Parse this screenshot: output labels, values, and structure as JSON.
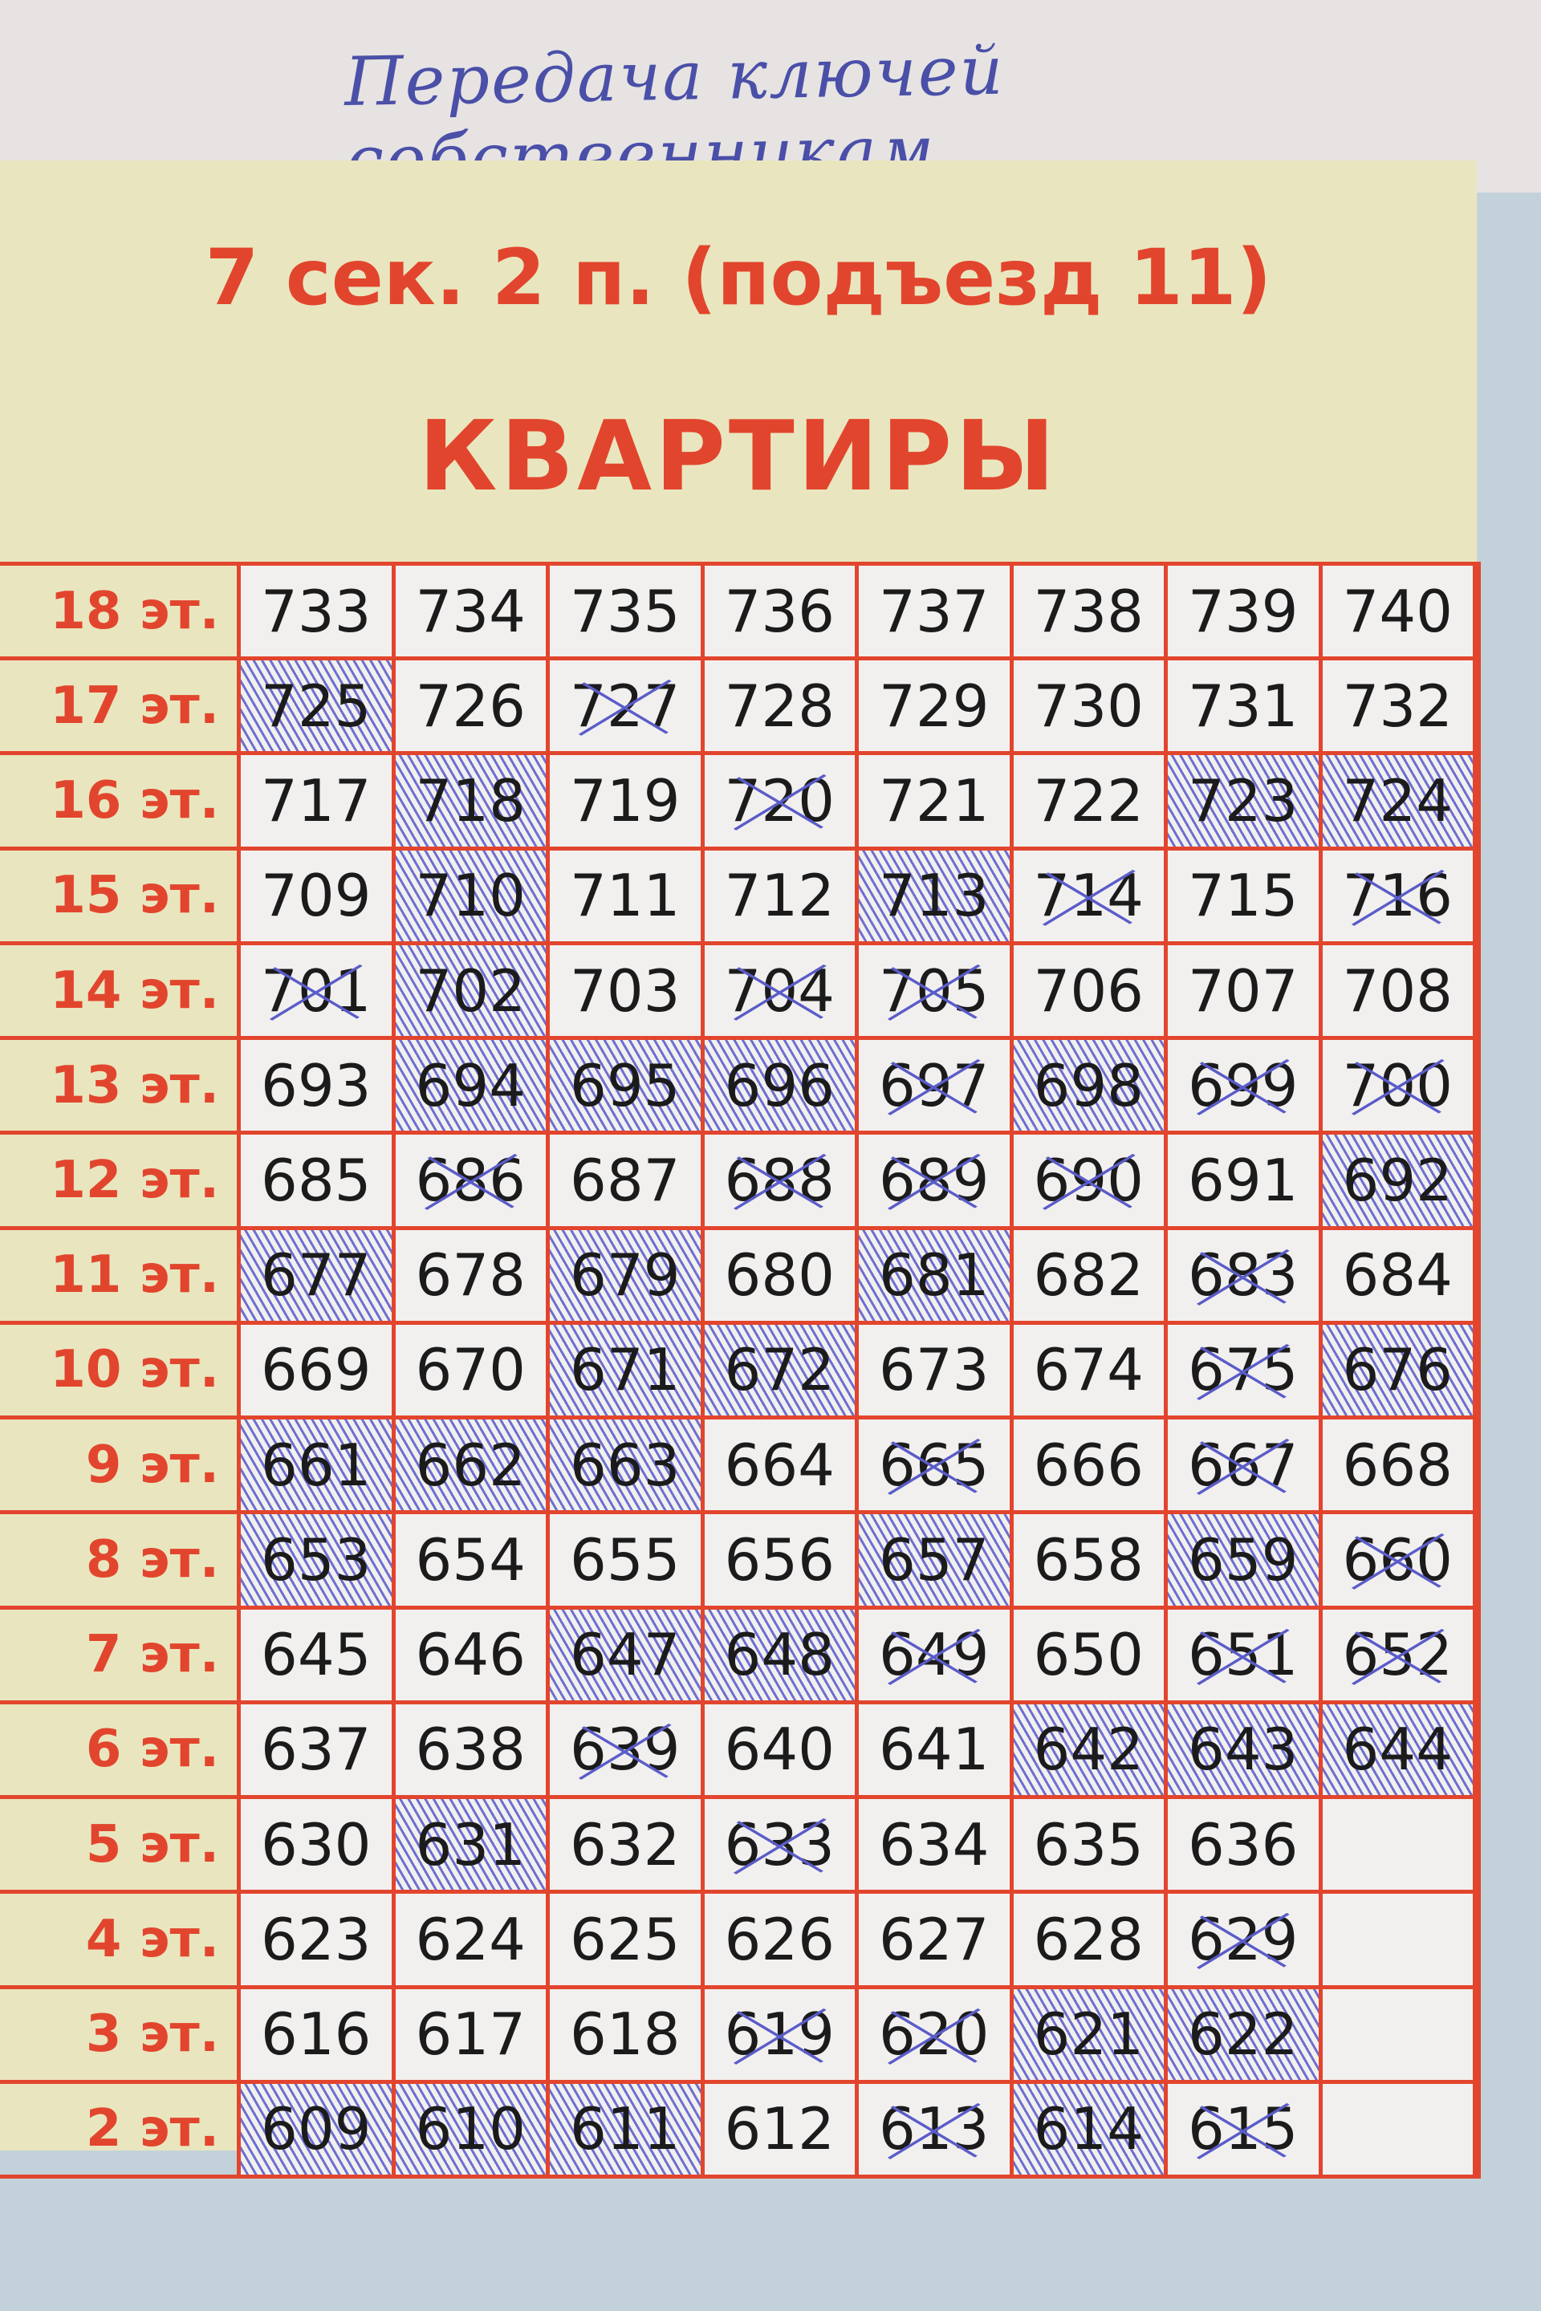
{
  "handwritten_note": "Передача ключей собственникам",
  "title": "7 сек. 2 п. (подъезд 11)",
  "subtitle": "КВАРТИРЫ",
  "colors": {
    "print_red": "#e2452d",
    "pen_blue": "#5a5cc8",
    "panel": "#e9e6bf"
  },
  "rows": [
    {
      "floor": "18 эт.",
      "apartments": [
        {
          "n": "733"
        },
        {
          "n": "734"
        },
        {
          "n": "735"
        },
        {
          "n": "736"
        },
        {
          "n": "737"
        },
        {
          "n": "738"
        },
        {
          "n": "739"
        },
        {
          "n": "740"
        }
      ]
    },
    {
      "floor": "17 эт.",
      "apartments": [
        {
          "n": "725",
          "mark": "shaded"
        },
        {
          "n": "726"
        },
        {
          "n": "727",
          "mark": "crossed"
        },
        {
          "n": "728"
        },
        {
          "n": "729"
        },
        {
          "n": "730"
        },
        {
          "n": "731"
        },
        {
          "n": "732"
        }
      ]
    },
    {
      "floor": "16 эт.",
      "apartments": [
        {
          "n": "717"
        },
        {
          "n": "718",
          "mark": "shaded"
        },
        {
          "n": "719"
        },
        {
          "n": "720",
          "mark": "crossed"
        },
        {
          "n": "721"
        },
        {
          "n": "722"
        },
        {
          "n": "723",
          "mark": "shaded"
        },
        {
          "n": "724",
          "mark": "shaded"
        }
      ]
    },
    {
      "floor": "15 эт.",
      "apartments": [
        {
          "n": "709"
        },
        {
          "n": "710",
          "mark": "shaded"
        },
        {
          "n": "711"
        },
        {
          "n": "712"
        },
        {
          "n": "713",
          "mark": "shaded"
        },
        {
          "n": "714",
          "mark": "crossed"
        },
        {
          "n": "715"
        },
        {
          "n": "716",
          "mark": "crossed"
        }
      ]
    },
    {
      "floor": "14 эт.",
      "apartments": [
        {
          "n": "701",
          "mark": "crossed"
        },
        {
          "n": "702",
          "mark": "shaded"
        },
        {
          "n": "703"
        },
        {
          "n": "704",
          "mark": "crossed"
        },
        {
          "n": "705",
          "mark": "crossed"
        },
        {
          "n": "706"
        },
        {
          "n": "707"
        },
        {
          "n": "708"
        }
      ]
    },
    {
      "floor": "13 эт.",
      "apartments": [
        {
          "n": "693"
        },
        {
          "n": "694",
          "mark": "shaded"
        },
        {
          "n": "695",
          "mark": "shaded"
        },
        {
          "n": "696",
          "mark": "shaded"
        },
        {
          "n": "697",
          "mark": "crossed"
        },
        {
          "n": "698",
          "mark": "shaded"
        },
        {
          "n": "699",
          "mark": "crossed"
        },
        {
          "n": "700",
          "mark": "crossed"
        }
      ]
    },
    {
      "floor": "12 эт.",
      "apartments": [
        {
          "n": "685"
        },
        {
          "n": "686",
          "mark": "crossed"
        },
        {
          "n": "687"
        },
        {
          "n": "688",
          "mark": "crossed"
        },
        {
          "n": "689",
          "mark": "crossed"
        },
        {
          "n": "690",
          "mark": "crossed"
        },
        {
          "n": "691"
        },
        {
          "n": "692",
          "mark": "shaded"
        }
      ]
    },
    {
      "floor": "11 эт.",
      "apartments": [
        {
          "n": "677",
          "mark": "shaded"
        },
        {
          "n": "678"
        },
        {
          "n": "679",
          "mark": "shaded"
        },
        {
          "n": "680"
        },
        {
          "n": "681",
          "mark": "shaded"
        },
        {
          "n": "682"
        },
        {
          "n": "683",
          "mark": "crossed"
        },
        {
          "n": "684"
        }
      ]
    },
    {
      "floor": "10 эт.",
      "apartments": [
        {
          "n": "669"
        },
        {
          "n": "670"
        },
        {
          "n": "671",
          "mark": "shaded"
        },
        {
          "n": "672",
          "mark": "shaded"
        },
        {
          "n": "673"
        },
        {
          "n": "674"
        },
        {
          "n": "675",
          "mark": "crossed"
        },
        {
          "n": "676",
          "mark": "shaded"
        }
      ]
    },
    {
      "floor": "9 эт.",
      "apartments": [
        {
          "n": "661",
          "mark": "shaded"
        },
        {
          "n": "662",
          "mark": "shaded"
        },
        {
          "n": "663",
          "mark": "shaded"
        },
        {
          "n": "664"
        },
        {
          "n": "665",
          "mark": "crossed"
        },
        {
          "n": "666"
        },
        {
          "n": "667",
          "mark": "crossed"
        },
        {
          "n": "668"
        }
      ]
    },
    {
      "floor": "8 эт.",
      "apartments": [
        {
          "n": "653",
          "mark": "shaded"
        },
        {
          "n": "654"
        },
        {
          "n": "655"
        },
        {
          "n": "656"
        },
        {
          "n": "657",
          "mark": "shaded"
        },
        {
          "n": "658"
        },
        {
          "n": "659",
          "mark": "shaded"
        },
        {
          "n": "660",
          "mark": "crossed"
        }
      ]
    },
    {
      "floor": "7 эт.",
      "apartments": [
        {
          "n": "645"
        },
        {
          "n": "646"
        },
        {
          "n": "647",
          "mark": "shaded"
        },
        {
          "n": "648",
          "mark": "shaded"
        },
        {
          "n": "649",
          "mark": "crossed"
        },
        {
          "n": "650"
        },
        {
          "n": "651",
          "mark": "crossed"
        },
        {
          "n": "652",
          "mark": "crossed"
        }
      ]
    },
    {
      "floor": "6 эт.",
      "apartments": [
        {
          "n": "637"
        },
        {
          "n": "638"
        },
        {
          "n": "639",
          "mark": "crossed"
        },
        {
          "n": "640"
        },
        {
          "n": "641"
        },
        {
          "n": "642",
          "mark": "shaded"
        },
        {
          "n": "643",
          "mark": "shaded"
        },
        {
          "n": "644",
          "mark": "shaded"
        }
      ]
    },
    {
      "floor": "5 эт.",
      "apartments": [
        {
          "n": "630"
        },
        {
          "n": "631",
          "mark": "shaded"
        },
        {
          "n": "632"
        },
        {
          "n": "633",
          "mark": "crossed"
        },
        {
          "n": "634"
        },
        {
          "n": "635"
        },
        {
          "n": "636"
        },
        {
          "n": ""
        }
      ]
    },
    {
      "floor": "4 эт.",
      "apartments": [
        {
          "n": "623"
        },
        {
          "n": "624"
        },
        {
          "n": "625"
        },
        {
          "n": "626"
        },
        {
          "n": "627"
        },
        {
          "n": "628"
        },
        {
          "n": "629",
          "mark": "crossed"
        },
        {
          "n": ""
        }
      ]
    },
    {
      "floor": "3 эт.",
      "apartments": [
        {
          "n": "616"
        },
        {
          "n": "617"
        },
        {
          "n": "618"
        },
        {
          "n": "619",
          "mark": "crossed"
        },
        {
          "n": "620",
          "mark": "crossed"
        },
        {
          "n": "621",
          "mark": "shaded"
        },
        {
          "n": "622",
          "mark": "shaded"
        },
        {
          "n": ""
        }
      ]
    },
    {
      "floor": "2 эт.",
      "apartments": [
        {
          "n": "609",
          "mark": "shaded"
        },
        {
          "n": "610",
          "mark": "shaded"
        },
        {
          "n": "611",
          "mark": "shaded"
        },
        {
          "n": "612"
        },
        {
          "n": "613",
          "mark": "crossed"
        },
        {
          "n": "614",
          "mark": "shaded"
        },
        {
          "n": "615",
          "mark": "crossed"
        },
        {
          "n": ""
        }
      ]
    }
  ]
}
